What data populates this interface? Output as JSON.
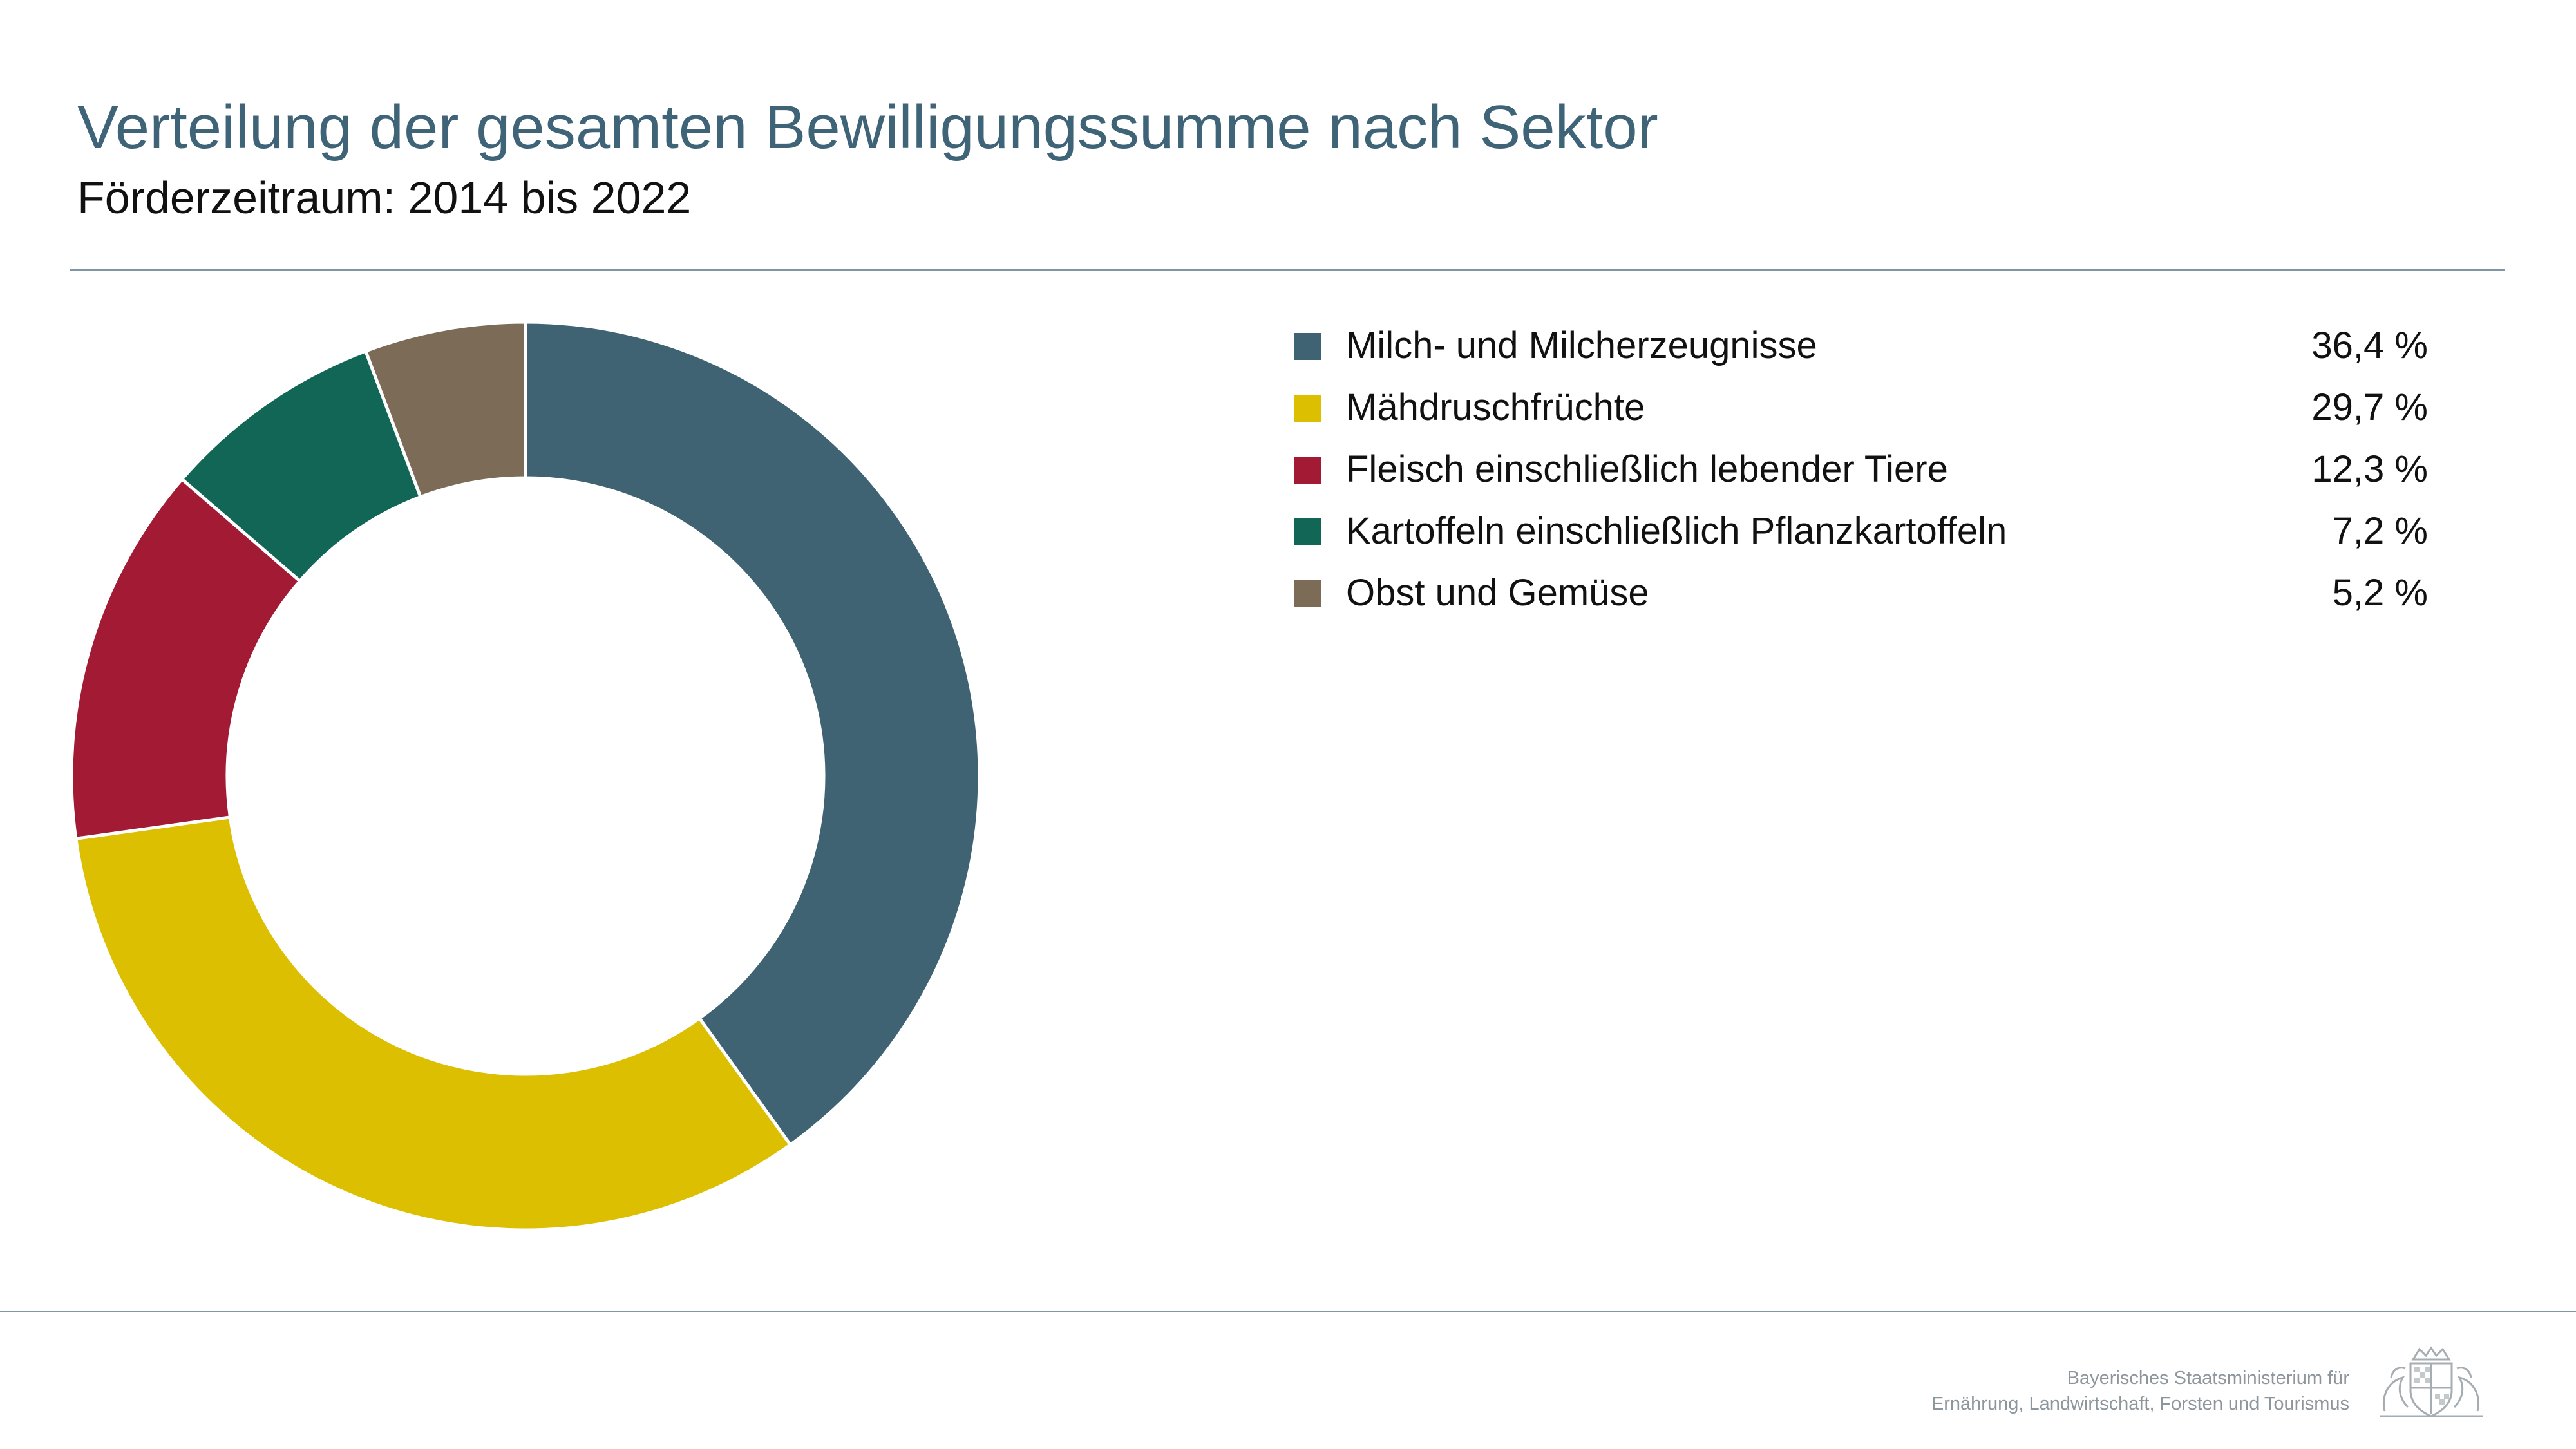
{
  "header": {
    "title": "Verteilung der gesamten Bewilligungssumme nach Sektor",
    "subtitle": "Förderzeitraum: 2014 bis 2022"
  },
  "footer": {
    "line1": "Bayerisches Staatsministerium für",
    "line2": "Ernährung, Landwirtschaft, Forsten und Tourismus",
    "logo_icon": "coat-of-arms"
  },
  "chart_data": {
    "type": "pie",
    "variant": "donut",
    "title": "Verteilung der gesamten Bewilligungssumme nach Sektor",
    "subtitle": "Förderzeitraum: 2014 bis 2022",
    "legend_position": "right",
    "unit": "%",
    "slices": [
      {
        "label": "Milch- und Milcherzeugnisse",
        "value": 36.4,
        "display": "36,4 %",
        "color": "#3f6373"
      },
      {
        "label": "Mähdruschfrüchte",
        "value": 29.7,
        "display": "29,7 %",
        "color": "#dcbf00"
      },
      {
        "label": "Fleisch einschließlich lebender Tiere",
        "value": 12.3,
        "display": "12,3 %",
        "color": "#a21a33"
      },
      {
        "label": "Kartoffeln einschließlich Pflanzkartoffeln",
        "value": 7.2,
        "display": "7,2 %",
        "color": "#126655"
      },
      {
        "label": "Obst und Gemüse",
        "value": 5.2,
        "display": "5,2 %",
        "color": "#7b6b57"
      }
    ]
  }
}
